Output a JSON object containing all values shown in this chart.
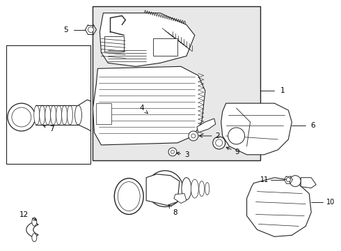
{
  "bg_color": "#ffffff",
  "border_color": "#222222",
  "line_color": "#222222",
  "text_color": "#000000",
  "shaded_fill": "#e8e8e8",
  "figsize": [
    4.9,
    3.6
  ],
  "dpi": 100,
  "xlim": [
    0,
    490
  ],
  "ylim": [
    0,
    360
  ]
}
